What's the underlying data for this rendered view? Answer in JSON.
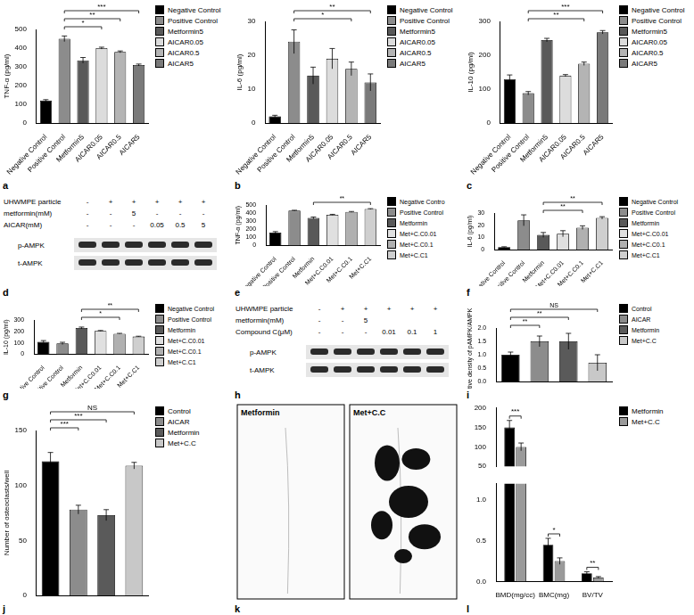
{
  "chart_data": [
    {
      "panel": "a",
      "type": "bar",
      "y_label": "TNF-α (pg/ml)",
      "categories": [
        "Negative Control",
        "Positive Control",
        "Metformin5",
        "AICAR0.05",
        "AICAR0.5",
        "AICAR5"
      ],
      "values": [
        120,
        450,
        335,
        400,
        380,
        310
      ],
      "errors": [
        5,
        15,
        15,
        5,
        5,
        5
      ],
      "colors": [
        "#000000",
        "#8c8c8c",
        "#595959",
        "#dcdcdc",
        "#b4b4b4",
        "#7a7a7a"
      ],
      "ylim": [
        0,
        500
      ],
      "yticks": [
        0,
        100,
        200,
        300,
        400,
        500
      ],
      "grid": false,
      "legend": "right",
      "significance": [
        {
          "from": "Positive Control",
          "to": "AICAR0.05",
          "label": "*"
        },
        {
          "from": "Positive Control",
          "to": "AICAR0.5",
          "label": "**"
        },
        {
          "from": "Positive Control",
          "to": "AICAR5",
          "label": "***"
        }
      ]
    },
    {
      "panel": "b",
      "type": "bar",
      "y_label": "IL-6 (pg/ml)",
      "categories": [
        "Negative Control",
        "Positive Control",
        "Metformin5",
        "AICAR0.05",
        "AICAR0.5",
        "AICAR5"
      ],
      "values": [
        2,
        24,
        14,
        19,
        16,
        12
      ],
      "errors": [
        0.3,
        3.5,
        2.5,
        3,
        2,
        2.5
      ],
      "colors": [
        "#000000",
        "#8c8c8c",
        "#595959",
        "#dcdcdc",
        "#b4b4b4",
        "#7a7a7a"
      ],
      "ylim": [
        0,
        30
      ],
      "yticks": [
        0,
        10,
        20,
        30
      ],
      "grid": false,
      "legend": "right",
      "significance": [
        {
          "from": "Positive Control",
          "to": "AICAR0.5",
          "label": "*"
        },
        {
          "from": "Positive Control",
          "to": "AICAR5",
          "label": "**"
        }
      ]
    },
    {
      "panel": "c",
      "type": "bar",
      "y_label": "IL-10 (pg/ml)",
      "categories": [
        "Negative Control",
        "Positive Control",
        "Metformin5",
        "AICAR0.05",
        "AICAR0.5",
        "AICAR5"
      ],
      "values": [
        130,
        88,
        245,
        140,
        175,
        268
      ],
      "errors": [
        12,
        5,
        5,
        3,
        5,
        5
      ],
      "colors": [
        "#000000",
        "#8c8c8c",
        "#595959",
        "#dcdcdc",
        "#b4b4b4",
        "#7a7a7a"
      ],
      "ylim": [
        0,
        300
      ],
      "yticks": [
        0,
        100,
        200,
        300
      ],
      "grid": false,
      "legend": "right",
      "significance": [
        {
          "from": "Positive Control",
          "to": "AICAR0.5",
          "label": "**"
        },
        {
          "from": "Positive Control",
          "to": "AICAR5",
          "label": "***"
        }
      ]
    },
    {
      "panel": "e",
      "type": "bar",
      "y_label": "TNF-α (pg/ml)",
      "categories": [
        "Negative Control",
        "Positive Control",
        "Metformin",
        "Met+C.C0.01",
        "Met+C.C0.1",
        "Met+C.C1"
      ],
      "legend_labels": [
        "Negative Contro",
        "Positive Control",
        "Metformin",
        "Met+C.C0.01",
        "Met+C.C0.1",
        "Met+C.C1"
      ],
      "values": [
        160,
        430,
        340,
        380,
        415,
        450
      ],
      "errors": [
        12,
        5,
        12,
        5,
        5,
        5
      ],
      "colors": [
        "#000000",
        "#8c8c8c",
        "#595959",
        "#e0e0e0",
        "#b0b0b0",
        "#cfcfcf"
      ],
      "ylim": [
        0,
        500
      ],
      "yticks": [
        0,
        100,
        200,
        300,
        400,
        500
      ],
      "grid": false,
      "legend": "right",
      "significance": [
        {
          "from": "Metformin",
          "to": "Met+C.C1",
          "label": "**"
        }
      ]
    },
    {
      "panel": "f",
      "type": "bar",
      "y_label": "IL-6 (pg/ml)",
      "categories": [
        "Negative Control",
        "Positive Control",
        "Metformin",
        "Met+C.C0.01",
        "Met+C.C0.1",
        "Met+C.C1"
      ],
      "values": [
        2,
        24,
        12,
        13,
        18,
        26
      ],
      "errors": [
        0.3,
        4.5,
        2,
        2.5,
        1.5,
        1
      ],
      "colors": [
        "#000000",
        "#8c8c8c",
        "#595959",
        "#e0e0e0",
        "#b0b0b0",
        "#cfcfcf"
      ],
      "ylim": [
        0,
        30
      ],
      "yticks": [
        0,
        10,
        20,
        30
      ],
      "grid": false,
      "legend": "right",
      "significance": [
        {
          "from": "Metformin",
          "to": "Met+C.C0.1",
          "label": "**"
        },
        {
          "from": "Metformin",
          "to": "Met+C.C1",
          "label": "**"
        }
      ]
    },
    {
      "panel": "g",
      "type": "bar",
      "y_label": "IL-10 (pg/ml)",
      "categories": [
        "Negative Control",
        "Positive Control",
        "Metformin",
        "Met+C.C0.01",
        "Met+C.C0.1",
        "Met+C.C1"
      ],
      "values": [
        110,
        95,
        230,
        205,
        180,
        155
      ],
      "errors": [
        10,
        10,
        8,
        3,
        3,
        3
      ],
      "colors": [
        "#000000",
        "#8c8c8c",
        "#595959",
        "#e0e0e0",
        "#b0b0b0",
        "#cfcfcf"
      ],
      "ylim": [
        0,
        300
      ],
      "yticks": [
        0,
        100,
        200,
        300
      ],
      "grid": false,
      "legend": "right",
      "significance": [
        {
          "from": "Metformin",
          "to": "Met+C.C0.1",
          "label": "*"
        },
        {
          "from": "Metformin",
          "to": "Met+C.C1",
          "label": "**"
        }
      ]
    },
    {
      "panel": "i",
      "type": "bar",
      "y_label": "Relative density of pAMPK/AMPK",
      "categories": [
        "Control",
        "AICAR",
        "Metformin",
        "Met+C.C"
      ],
      "values": [
        1.0,
        1.5,
        1.5,
        0.7
      ],
      "errors": [
        0.1,
        0.2,
        0.3,
        0.3
      ],
      "colors": [
        "#000000",
        "#8c8c8c",
        "#5a5a5a",
        "#c8c8c8"
      ],
      "ylim": [
        0,
        2
      ],
      "yticks": [
        {
          "value": 0,
          "label": "0.0"
        },
        0.5,
        {
          "value": 1,
          "label": "1.0"
        },
        1.5,
        {
          "value": 2,
          "label": "2.0"
        }
      ],
      "grid": false,
      "legend": "right",
      "tick_labels": "y",
      "significance": [
        {
          "from": "Control",
          "to": "AICAR",
          "label": "**"
        },
        {
          "from": "Control",
          "to": "Metformin",
          "label": "**"
        },
        {
          "from": "Control",
          "to": "Met+C.C",
          "label": "NS"
        }
      ]
    },
    {
      "panel": "j",
      "type": "bar",
      "y_label": "Number of osteoclasts/well",
      "categories": [
        "Control",
        "AICAR",
        "Metformin",
        "Met+C.C"
      ],
      "values": [
        122,
        78,
        73,
        118
      ],
      "errors": [
        8,
        4,
        5,
        3
      ],
      "colors": [
        "#000000",
        "#8c8c8c",
        "#5a5a5a",
        "#c8c8c8"
      ],
      "ylim": [
        0,
        150
      ],
      "yticks": [
        0,
        50,
        100,
        150
      ],
      "grid": false,
      "legend": "right",
      "tick_labels": "y",
      "significance": [
        {
          "from": "Control",
          "to": "AICAR",
          "label": "***"
        },
        {
          "from": "Control",
          "to": "Metformin",
          "label": "***"
        },
        {
          "from": "Control",
          "to": "Met+C.C",
          "label": "NS"
        }
      ]
    },
    {
      "panel": "l",
      "type": "bar",
      "categories": [
        "BMD(mg/cc)",
        "BMC(mg)",
        "BV/TV"
      ],
      "series": [
        {
          "name": "Metformin",
          "color": "#000000",
          "values": [
            150,
            0.45,
            0.1
          ],
          "errors": [
            18,
            0.08,
            0.02
          ]
        },
        {
          "name": "Met+C.C",
          "color": "#9a9a9a",
          "values": [
            100,
            0.25,
            0.05
          ],
          "errors": [
            10,
            0.04,
            0.01
          ]
        }
      ],
      "axes": [
        {
          "ylim": [
            50,
            200
          ],
          "yticks": [
            50,
            100,
            150,
            200
          ]
        },
        {
          "ylim": [
            0,
            1.2
          ],
          "yticks": [
            {
              "value": 0,
              "label": "0.0"
            },
            0.5,
            {
              "value": 1,
              "label": "1.0"
            }
          ]
        }
      ],
      "grid": false,
      "legend": "right",
      "significance": [
        {
          "category": "BMD(mg/cc)",
          "label": "***"
        },
        {
          "category": "BMC(mg)",
          "label": "*"
        },
        {
          "category": "BV/TV",
          "label": "**"
        }
      ]
    }
  ],
  "blots": [
    {
      "panel": "d",
      "rows": [
        {
          "label": "UHWMPE particle",
          "cells": [
            "-",
            "+",
            "+",
            "+",
            "+",
            "+"
          ]
        },
        {
          "label": "metformin(mM)",
          "cells": [
            "-",
            "-",
            "5",
            "-",
            "-",
            "-"
          ]
        },
        {
          "label": "AICAR(mM)",
          "cells": [
            "-",
            "-",
            "-",
            "0.05",
            "0.5",
            "5"
          ]
        }
      ],
      "bands": [
        "p-AMPK",
        "t-AMPK"
      ]
    },
    {
      "panel": "h",
      "rows": [
        {
          "label": "UHWMPE particle",
          "cells": [
            "-",
            "+",
            "+",
            "+",
            "+",
            "+"
          ]
        },
        {
          "label": "metformin(mM)",
          "cells": [
            "-",
            "-",
            "5",
            null,
            null,
            null
          ]
        },
        {
          "label": "Compound C(μM)",
          "cells": [
            "-",
            "-",
            "-",
            "0.01",
            "0.1",
            "1"
          ]
        }
      ],
      "bands": [
        "p-AMPK",
        "t-AMPK"
      ]
    }
  ],
  "images": {
    "panel": "k",
    "labels": [
      "Metformin",
      "Met+C.C"
    ]
  }
}
